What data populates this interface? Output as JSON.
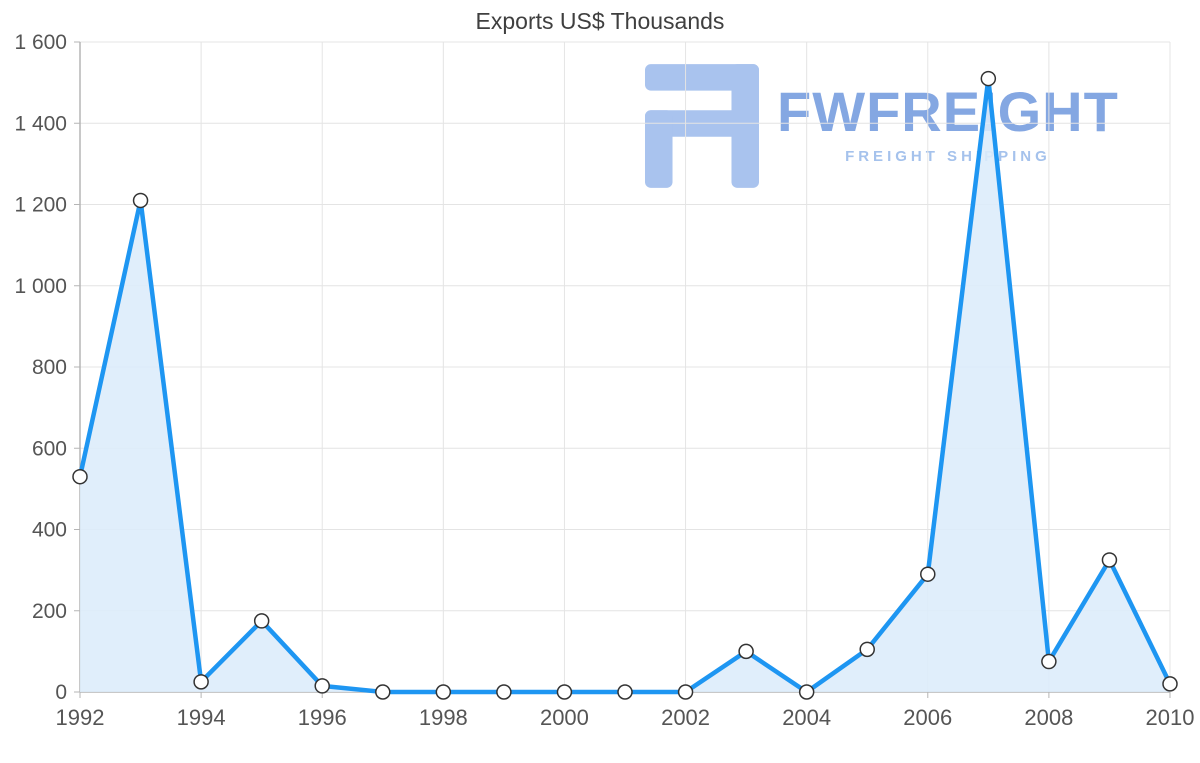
{
  "chart_data": {
    "type": "area",
    "title": "Exports US$ Thousands",
    "x": [
      1992,
      1993,
      1994,
      1995,
      1996,
      1997,
      1998,
      1999,
      2000,
      2001,
      2002,
      2003,
      2004,
      2005,
      2006,
      2007,
      2008,
      2009,
      2010
    ],
    "values": [
      530,
      1210,
      25,
      175,
      15,
      0,
      0,
      0,
      0,
      0,
      0,
      100,
      0,
      105,
      290,
      1510,
      75,
      325,
      20
    ],
    "series_name": "Exports US$ Thousands",
    "xlabel": "",
    "ylabel": "",
    "ylim": [
      0,
      1600
    ],
    "ytick_step": 200,
    "yticks": [
      {
        "value": 0,
        "label": "0"
      },
      {
        "value": 200,
        "label": "200"
      },
      {
        "value": 400,
        "label": "400"
      },
      {
        "value": 600,
        "label": "600"
      },
      {
        "value": 800,
        "label": "800"
      },
      {
        "value": 1000,
        "label": "1 000"
      },
      {
        "value": 1200,
        "label": "1 200"
      },
      {
        "value": 1400,
        "label": "1 400"
      },
      {
        "value": 1600,
        "label": "1 600"
      }
    ],
    "x_tick_years": [
      1992,
      1994,
      1996,
      1998,
      2000,
      2002,
      2004,
      2006,
      2008,
      2010
    ],
    "grid": true,
    "legend": "none",
    "line_color": "#1e96f2",
    "fill_color": "#dcecfb",
    "fill_opacity": 0.88,
    "marker_fill": "#ffffff",
    "marker_stroke": "#333333",
    "grid_color": "#e4e4e4",
    "axis_color": "#b5b5b5",
    "tick_color": "#555555",
    "title_color": "#3f3f3f"
  },
  "watermark": {
    "brand": "FWFREIGHT",
    "subtitle": "FREIGHT SHIPPING",
    "logo_icon": "fwfreight-logo",
    "brand_color": "#84a7e2",
    "subtitle_color": "#a5c2ec",
    "logo_color": "#a9c3ee"
  }
}
